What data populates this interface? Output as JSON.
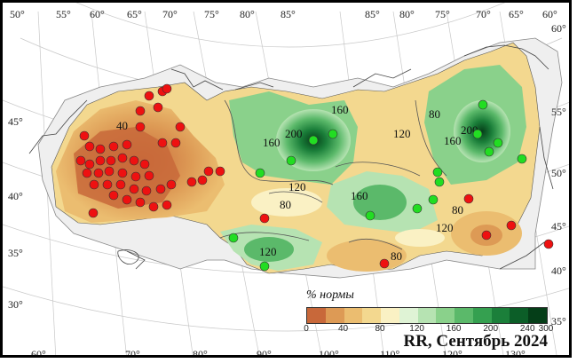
{
  "map": {
    "title": "RR, Сентябрь 2024",
    "legend_title": "% нормы",
    "legend_ticks": [
      "0",
      "40",
      "80",
      "120",
      "160",
      "200",
      "240",
      "300"
    ],
    "legend_colors": [
      "#c8683a",
      "#dd9a55",
      "#ebbd70",
      "#f3d88f",
      "#faf1c4",
      "#dff3d5",
      "#b6e3b2",
      "#8ad18b",
      "#5bb96a",
      "#35a050",
      "#1b7f3a",
      "#0c5e28",
      "#053e18"
    ],
    "top_labels": [
      "50°",
      "55°",
      "60°",
      "65°",
      "70°",
      "75°",
      "80°",
      "85°",
      "85°",
      "80°",
      "75°",
      "70°",
      "65°",
      "60°"
    ],
    "bottom_labels": [
      "60°",
      "70°",
      "80°",
      "90°",
      "100°",
      "110°",
      "120°",
      "130°"
    ],
    "left_labels": [
      "45°",
      "40°",
      "35°",
      "30°"
    ],
    "right_labels": [
      "60°",
      "55°",
      "50°",
      "45°",
      "40°",
      "35°"
    ],
    "isolines": [
      "40",
      "160",
      "200",
      "160",
      "120",
      "80",
      "160",
      "120",
      "120",
      "80",
      "80",
      "160",
      "200",
      "120",
      "80"
    ],
    "stations_dry_color": "#ee1111",
    "stations_wet_color": "#22dd22"
  }
}
